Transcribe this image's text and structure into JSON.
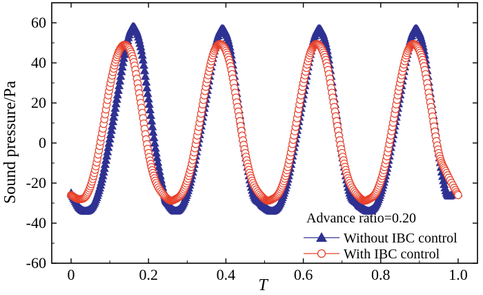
{
  "chart_data": {
    "type": "line",
    "xlabel": "T",
    "ylabel": "Sound pressure/Pa",
    "xlim": [
      -0.05,
      1.05
    ],
    "ylim": [
      -60,
      70
    ],
    "xticks": [
      0,
      0.2,
      0.4,
      0.6,
      0.8,
      1.0
    ],
    "xtick_labels": [
      "0",
      "0.2",
      "0.4",
      "0.6",
      "0.8",
      "1.0"
    ],
    "yticks": [
      -60,
      -40,
      -20,
      0,
      20,
      40,
      60
    ],
    "ytick_labels": [
      "-60",
      "-40",
      "-20",
      "0",
      "20",
      "40",
      "60"
    ],
    "grid": false,
    "legend_title": "Advance ratio=0.20",
    "legend_position": "bottom-right",
    "series": [
      {
        "name": "Without IBC control",
        "marker": "triangle",
        "color": "#2e3192",
        "x": [
          0,
          0.02,
          0.04,
          0.06,
          0.08,
          0.1,
          0.12,
          0.14,
          0.16,
          0.18,
          0.2,
          0.22,
          0.24,
          0.25,
          0.27,
          0.29,
          0.31,
          0.33,
          0.35,
          0.37,
          0.39,
          0.41,
          0.43,
          0.45,
          0.47,
          0.49,
          0.5,
          0.52,
          0.54,
          0.56,
          0.58,
          0.6,
          0.62,
          0.64,
          0.66,
          0.68,
          0.7,
          0.72,
          0.74,
          0.75,
          0.77,
          0.79,
          0.81,
          0.83,
          0.85,
          0.87,
          0.89,
          0.91,
          0.93,
          0.95,
          0.97,
          0.99,
          1.0
        ],
        "y": [
          -25,
          -32,
          -34,
          -30,
          -18,
          2,
          24,
          46,
          58,
          48,
          22,
          -5,
          -25,
          -30,
          -34,
          -30,
          -18,
          2,
          24,
          46,
          57,
          48,
          22,
          -5,
          -25,
          -30,
          -32,
          -34,
          -30,
          -18,
          2,
          24,
          46,
          57,
          48,
          22,
          -5,
          -25,
          -30,
          -32,
          -34,
          -30,
          -18,
          2,
          24,
          46,
          57,
          48,
          22,
          -5,
          -25,
          -25,
          -25
        ]
      },
      {
        "name": "With IBC control",
        "marker": "circle",
        "color": "#e8412b",
        "x": [
          0,
          0.02,
          0.04,
          0.06,
          0.08,
          0.1,
          0.12,
          0.14,
          0.16,
          0.18,
          0.2,
          0.22,
          0.25,
          0.27,
          0.29,
          0.31,
          0.33,
          0.35,
          0.37,
          0.39,
          0.41,
          0.43,
          0.45,
          0.47,
          0.5,
          0.52,
          0.54,
          0.56,
          0.58,
          0.6,
          0.62,
          0.64,
          0.66,
          0.68,
          0.7,
          0.72,
          0.75,
          0.77,
          0.79,
          0.81,
          0.83,
          0.85,
          0.87,
          0.89,
          0.91,
          0.93,
          0.95,
          0.97,
          1.0
        ],
        "y": [
          -26,
          -28,
          -26,
          -15,
          5,
          28,
          44,
          49,
          42,
          20,
          -5,
          -20,
          -28,
          -28,
          -24,
          -12,
          8,
          30,
          46,
          49,
          40,
          18,
          -5,
          -20,
          -28,
          -28,
          -24,
          -12,
          8,
          30,
          46,
          49,
          40,
          18,
          -5,
          -20,
          -28,
          -28,
          -24,
          -12,
          8,
          30,
          46,
          49,
          40,
          18,
          -5,
          -15,
          -26
        ]
      }
    ]
  }
}
